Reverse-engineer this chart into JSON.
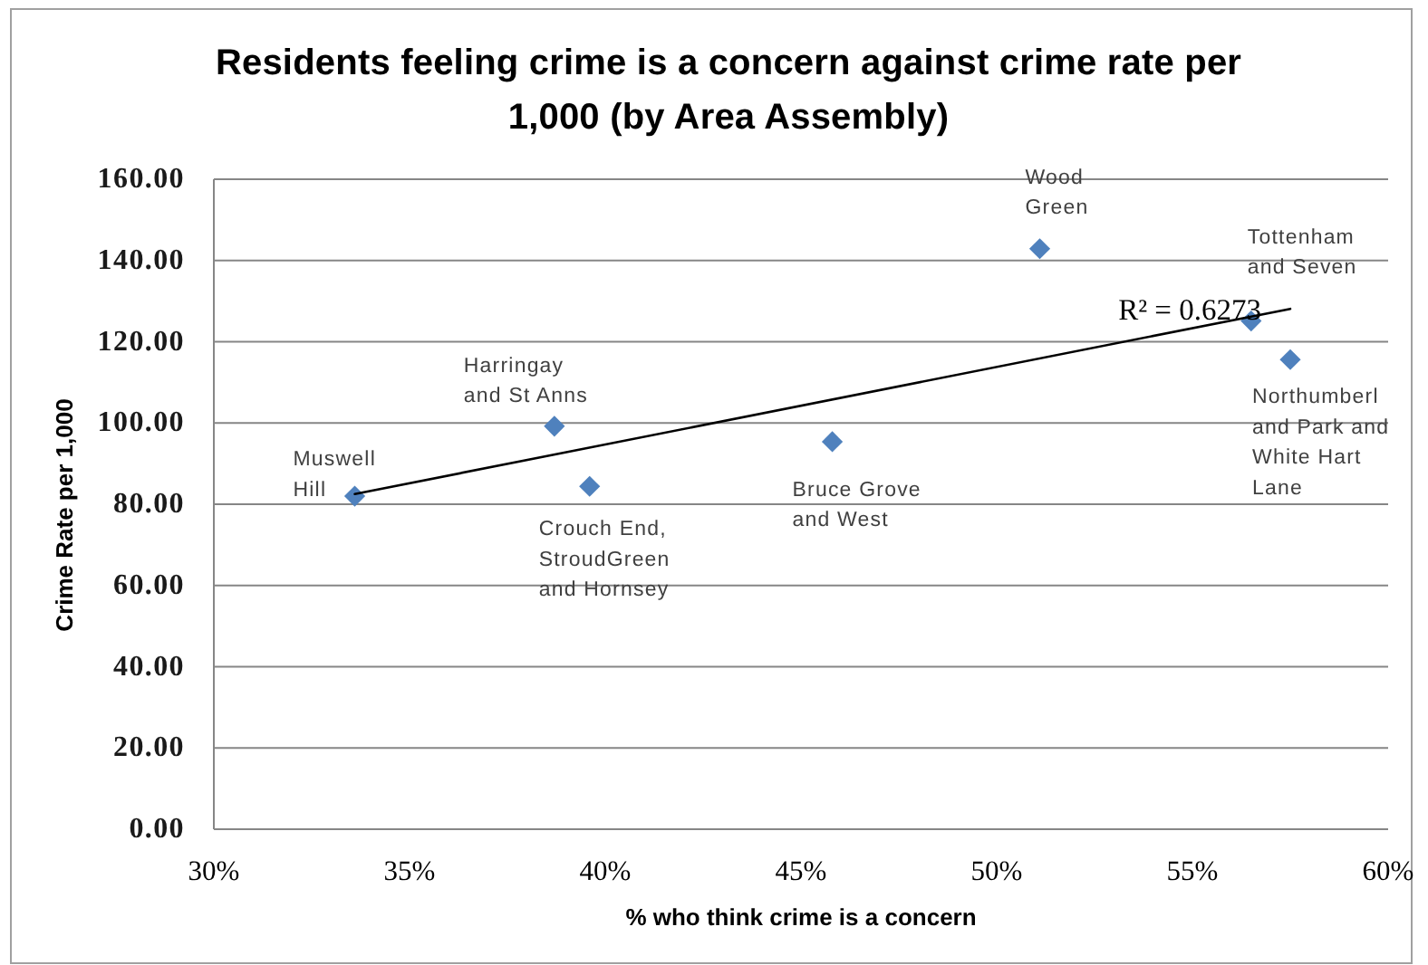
{
  "chart_data": {
    "type": "scatter",
    "title": "Residents feeling crime is a concern against crime rate per 1,000 (by Area Assembly)",
    "xlabel": "% who think crime is a concern",
    "ylabel": "Crime Rate per 1,000",
    "x": [
      33.6,
      38.7,
      39.6,
      45.8,
      51.1,
      56.5,
      57.5
    ],
    "series": [
      {
        "color": "#4f81bd",
        "values": [
          82.0,
          99.2,
          84.4,
          95.4,
          142.9,
          125.1,
          115.6
        ]
      },
      {
        "type": "line",
        "color": "#000000",
        "marker": "none",
        "x": [
          33.6,
          57.5
        ],
        "values": [
          82.5,
          128.1
        ]
      }
    ],
    "xlim": [
      30,
      60
    ],
    "xticks": [
      {
        "value": 30,
        "label": "30%"
      },
      {
        "value": 35,
        "label": "35%"
      },
      {
        "value": 40,
        "label": "40%"
      },
      {
        "value": 45,
        "label": "45%"
      },
      {
        "value": 50,
        "label": "50%"
      },
      {
        "value": 55,
        "label": "55%"
      },
      {
        "value": 60,
        "label": "60%"
      }
    ],
    "ylim": [
      0,
      160
    ],
    "yticks": [
      {
        "value": 0,
        "label": "0.00"
      },
      {
        "value": 20,
        "label": "20.00"
      },
      {
        "value": 40,
        "label": "40.00"
      },
      {
        "value": 60,
        "label": "60.00"
      },
      {
        "value": 80,
        "label": "80.00"
      },
      {
        "value": 100,
        "label": "100.00"
      },
      {
        "value": 120,
        "label": "120.00"
      },
      {
        "value": 140,
        "label": "140.00"
      },
      {
        "value": 160,
        "label": "160.00"
      }
    ],
    "grid": "y",
    "marker": "diamond",
    "annotations": [
      {
        "text": "Muswell\nHill",
        "x": 33.6,
        "y": 82.0
      },
      {
        "text": "Harringay\nand St Anns",
        "x": 38.7,
        "y": 99.2
      },
      {
        "text": "Crouch End,\nStroudGreen\nand Hornsey",
        "x": 39.6,
        "y": 84.4
      },
      {
        "text": "Bruce Grove\nand West",
        "x": 45.8,
        "y": 95.4
      },
      {
        "text": "Wood\nGreen",
        "x": 51.1,
        "y": 142.9
      },
      {
        "text": "Tottenham\nand Seven",
        "x": 56.5,
        "y": 125.1
      },
      {
        "text": "Northumberl\nand Park and\nWhite Hart\nLane",
        "x": 57.5,
        "y": 115.6
      },
      "R² = 0.6273"
    ]
  }
}
